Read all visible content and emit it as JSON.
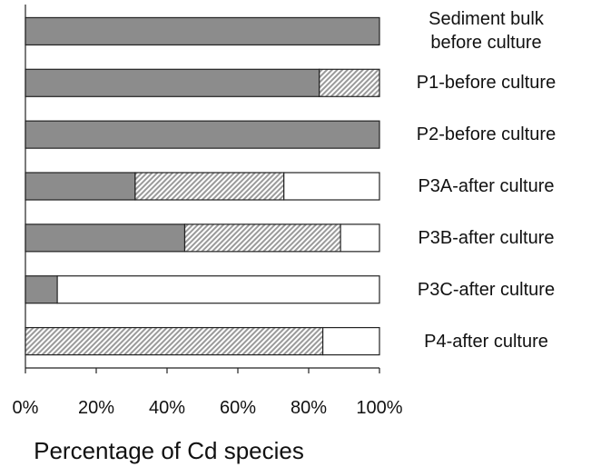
{
  "chart_data": {
    "type": "stacked-barh",
    "categories": [
      "Sediment bulk\nbefore culture",
      "P1-before culture",
      "P2-before culture",
      "P3A-after culture",
      "P3B-after culture",
      "P3C-after culture",
      "P4-after culture"
    ],
    "series": [
      {
        "color": "#8c8c8c",
        "pattern": "solid",
        "values": [
          100,
          83,
          100,
          31,
          45,
          9,
          0
        ]
      },
      {
        "color": "#9a9a9a",
        "pattern": "hatch",
        "values": [
          0,
          17,
          0,
          42,
          44,
          0,
          84
        ]
      },
      {
        "color": "#ffffff",
        "pattern": "solid",
        "values": [
          0,
          0,
          0,
          27,
          11,
          91,
          16
        ]
      }
    ],
    "xlim": [
      0,
      100
    ],
    "xticks": [
      {
        "value": 0,
        "label": "0%"
      },
      {
        "value": 20,
        "label": "20%"
      },
      {
        "value": 40,
        "label": "40%"
      },
      {
        "value": 60,
        "label": "60%"
      },
      {
        "value": 80,
        "label": "80%"
      },
      {
        "value": 100,
        "label": "100%"
      }
    ],
    "xlabel": "Percentage of Cd species"
  }
}
